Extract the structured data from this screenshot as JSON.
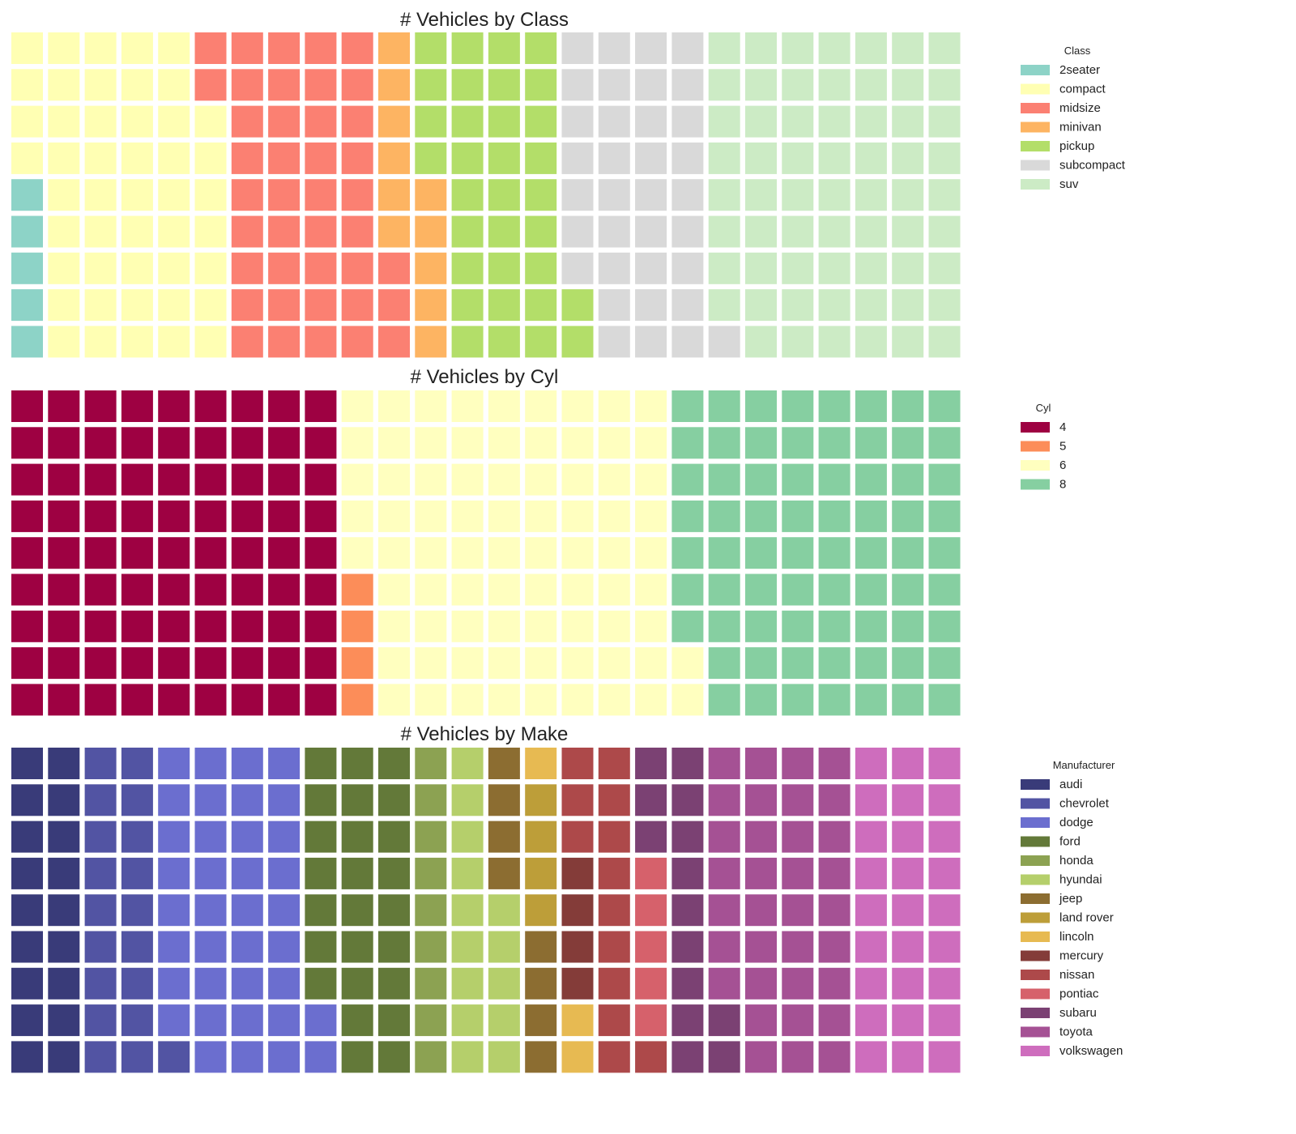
{
  "chart_data": [
    {
      "type": "waffle",
      "title": "# Vehicles by Class",
      "rows": 9,
      "columns": 26,
      "fill_order": "column-major, bottom-to-top",
      "legend_title": "Class",
      "legend_position": "right",
      "grid": false,
      "categories": [
        "2seater",
        "compact",
        "midsize",
        "minivan",
        "pickup",
        "subcompact",
        "suv"
      ],
      "values": [
        5,
        47,
        41,
        11,
        33,
        35,
        62
      ],
      "colors": [
        "#8dd3c7",
        "#ffffb3",
        "#fb8072",
        "#fdb462",
        "#b3de69",
        "#d9d9d9",
        "#ccebc5"
      ]
    },
    {
      "type": "waffle",
      "title": "# Vehicles by Cyl",
      "rows": 9,
      "columns": 26,
      "fill_order": "column-major, bottom-to-top",
      "legend_title": "Cyl",
      "legend_position": "right",
      "grid": false,
      "categories": [
        "4",
        "5",
        "6",
        "8"
      ],
      "values": [
        81,
        4,
        79,
        70
      ],
      "colors": [
        "#9e0142",
        "#fc8d59",
        "#ffffbf",
        "#86cfa1"
      ]
    },
    {
      "type": "waffle",
      "title": "# Vehicles by Make",
      "rows": 9,
      "columns": 26,
      "fill_order": "column-major, bottom-to-top",
      "legend_title": "Manufacturer",
      "legend_position": "right",
      "grid": false,
      "categories": [
        "audi",
        "chevrolet",
        "dodge",
        "ford",
        "honda",
        "hyundai",
        "jeep",
        "land rover",
        "lincoln",
        "mercury",
        "nissan",
        "pontiac",
        "subaru",
        "toyota",
        "volkswagen"
      ],
      "values": [
        18,
        19,
        37,
        25,
        9,
        14,
        8,
        4,
        3,
        4,
        13,
        5,
        14,
        34,
        27
      ],
      "colors": [
        "#393b79",
        "#5254a3",
        "#6b6ecf",
        "#637939",
        "#8ca252",
        "#b5cf6b",
        "#8c6d31",
        "#bd9e39",
        "#e7ba52",
        "#843c39",
        "#ad494a",
        "#d6616b",
        "#7b4173",
        "#a55194",
        "#ce6dbd"
      ]
    }
  ]
}
